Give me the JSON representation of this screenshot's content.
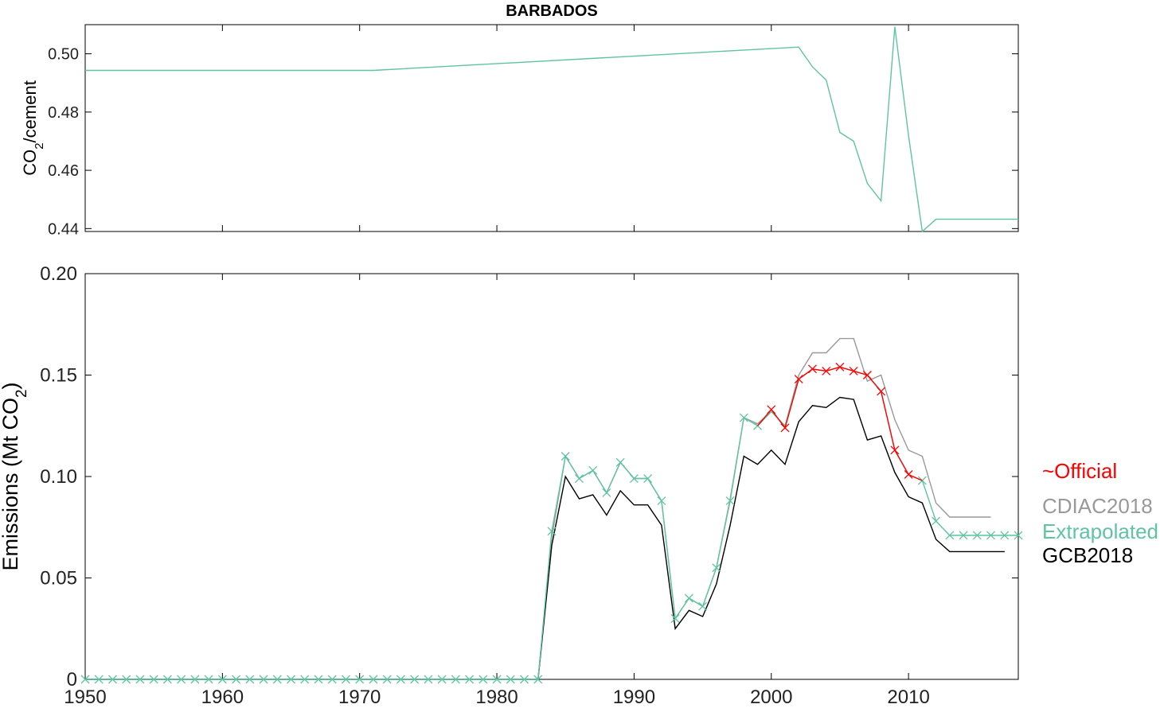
{
  "chart_data": [
    {
      "type": "line",
      "title": "BARBADOS",
      "ylabel": "CO2/cement",
      "ylabel_parts": [
        "CO",
        "2",
        "/cement"
      ],
      "xlim": [
        1950,
        2018
      ],
      "ylim": [
        0.439,
        0.51
      ],
      "xticks": [
        1950,
        1960,
        1970,
        1980,
        1990,
        2000,
        2010
      ],
      "yticks": [
        0.44,
        0.46,
        0.48,
        0.5
      ],
      "ytick_labels": [
        "0.44",
        "0.46",
        "0.48",
        "0.50"
      ],
      "series": [
        {
          "color": "#5ec4a1",
          "x": [
            1950,
            1971,
            2002,
            2003,
            2004,
            2005,
            2006,
            2007,
            2008,
            2009,
            2010,
            2011,
            2012,
            2018
          ],
          "y": [
            0.4943,
            0.4943,
            0.5023,
            0.4955,
            0.491,
            0.473,
            0.47,
            0.4555,
            0.4495,
            0.5093,
            0.472,
            0.439,
            0.4432,
            0.4432
          ]
        }
      ]
    },
    {
      "type": "line",
      "ylabel": "Emissions (Mt CO2)",
      "ylabel_parts": [
        "Emissions (Mt CO",
        "2",
        ")"
      ],
      "xlim": [
        1950,
        2018
      ],
      "ylim": [
        0,
        0.2
      ],
      "xticks": [
        1950,
        1960,
        1970,
        1980,
        1990,
        2000,
        2010
      ],
      "xtick_labels": [
        "1950",
        "1960",
        "1970",
        "1980",
        "1990",
        "2000",
        "2010"
      ],
      "yticks": [
        0,
        0.05,
        0.1,
        0.15,
        0.2
      ],
      "ytick_labels": [
        "0",
        "0.05",
        "0.10",
        "0.15",
        "0.20"
      ],
      "legend_position": "right",
      "series": [
        {
          "name": "CDIAC2018",
          "color": "#999999",
          "marker": "none",
          "x": [
            1983,
            1984,
            1985,
            1986,
            1987,
            1988,
            1989,
            1990,
            1991,
            1992,
            1993,
            1994,
            1995,
            1996,
            1997,
            1998,
            1999,
            2000,
            2001,
            2002,
            2003,
            2004,
            2005,
            2006,
            2007,
            2008,
            2009,
            2010,
            2011,
            2012,
            2013,
            2014,
            2015,
            2016
          ],
          "y": [
            0.0,
            0.07,
            0.11,
            0.099,
            0.103,
            0.092,
            0.107,
            0.099,
            0.099,
            0.088,
            0.03,
            0.04,
            0.036,
            0.055,
            0.089,
            0.129,
            0.126,
            0.132,
            0.125,
            0.15,
            0.161,
            0.161,
            0.168,
            0.168,
            0.147,
            0.15,
            0.128,
            0.113,
            0.11,
            0.087,
            0.08,
            0.08,
            0.08,
            0.08
          ]
        },
        {
          "name": "GCB2018",
          "color": "#000000",
          "marker": "none",
          "x": [
            1950,
            1983,
            1984,
            1985,
            1986,
            1987,
            1988,
            1989,
            1990,
            1991,
            1992,
            1993,
            1994,
            1995,
            1996,
            1997,
            1998,
            1999,
            2000,
            2001,
            2002,
            2003,
            2004,
            2005,
            2006,
            2007,
            2008,
            2009,
            2010,
            2011,
            2012,
            2013,
            2014,
            2015,
            2016,
            2017
          ],
          "y": [
            0.0,
            0.0,
            0.066,
            0.1,
            0.089,
            0.091,
            0.081,
            0.093,
            0.086,
            0.086,
            0.076,
            0.025,
            0.034,
            0.031,
            0.047,
            0.076,
            0.11,
            0.106,
            0.113,
            0.106,
            0.127,
            0.135,
            0.134,
            0.139,
            0.138,
            0.118,
            0.12,
            0.102,
            0.09,
            0.087,
            0.069,
            0.063,
            0.063,
            0.063,
            0.063,
            0.063
          ]
        },
        {
          "name": "Extrapolated",
          "color": "#5ec4a1",
          "marker": "x",
          "x": [
            1950,
            1951,
            1952,
            1953,
            1954,
            1955,
            1956,
            1957,
            1958,
            1959,
            1960,
            1961,
            1962,
            1963,
            1964,
            1965,
            1966,
            1967,
            1968,
            1969,
            1970,
            1971,
            1972,
            1973,
            1974,
            1975,
            1976,
            1977,
            1978,
            1979,
            1980,
            1981,
            1982,
            1983,
            1984,
            1985,
            1986,
            1987,
            1988,
            1989,
            1990,
            1991,
            1992,
            1993,
            1994,
            1995,
            1996,
            1997,
            1998,
            1999,
            2000,
            2001,
            2002,
            2003,
            2004,
            2005,
            2006,
            2007,
            2008,
            2009,
            2010,
            2011,
            2012,
            2013,
            2014,
            2015,
            2016,
            2017,
            2018
          ],
          "y": [
            0,
            0,
            0,
            0,
            0,
            0,
            0,
            0,
            0,
            0,
            0,
            0,
            0,
            0,
            0,
            0,
            0,
            0,
            0,
            0,
            0,
            0,
            0,
            0,
            0,
            0,
            0,
            0,
            0,
            0,
            0,
            0,
            0,
            0,
            0.073,
            0.11,
            0.099,
            0.103,
            0.092,
            0.107,
            0.099,
            0.099,
            0.088,
            0.03,
            0.04,
            0.036,
            0.055,
            0.088,
            0.129,
            0.125,
            0.132,
            0.125,
            0.148,
            0.153,
            0.152,
            0.154,
            0.152,
            0.15,
            0.142,
            0.113,
            0.101,
            0.098,
            0.078,
            0.071,
            0.071,
            0.071,
            0.071,
            0.071,
            0.071
          ],
          "marker_at": [
            1950,
            1951,
            1952,
            1953,
            1954,
            1955,
            1956,
            1957,
            1958,
            1959,
            1960,
            1961,
            1962,
            1963,
            1964,
            1965,
            1966,
            1967,
            1968,
            1969,
            1970,
            1971,
            1972,
            1973,
            1974,
            1975,
            1976,
            1977,
            1978,
            1979,
            1980,
            1981,
            1982,
            1983,
            1984,
            1985,
            1986,
            1987,
            1988,
            1989,
            1990,
            1991,
            1992,
            1993,
            1994,
            1995,
            1996,
            1997,
            1998,
            1999,
            2011,
            2012,
            2013,
            2014,
            2015,
            2016,
            2017,
            2018
          ]
        },
        {
          "name": "~Official",
          "color": "#ff0000",
          "marker": "x",
          "x": [
            1999,
            2000,
            2001,
            2002,
            2003,
            2004,
            2005,
            2006,
            2007,
            2008,
            2009,
            2010,
            2011
          ],
          "y": [
            0.125,
            0.133,
            0.124,
            0.148,
            0.153,
            0.152,
            0.154,
            0.152,
            0.15,
            0.142,
            0.113,
            0.101,
            0.098
          ],
          "marker_at": [
            2000,
            2001,
            2002,
            2003,
            2004,
            2005,
            2006,
            2007,
            2008,
            2009,
            2010
          ]
        }
      ],
      "legend_order": [
        "~Official",
        "CDIAC2018",
        "Extrapolated",
        "GCB2018"
      ]
    }
  ]
}
